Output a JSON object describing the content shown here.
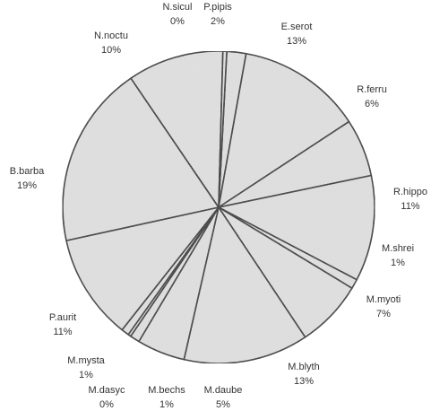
{
  "chart_data": {
    "type": "pie",
    "title": "",
    "slices": [
      {
        "name": "P.pipis",
        "pct_label": "2%",
        "value": 2
      },
      {
        "name": "E.serot",
        "pct_label": "13%",
        "value": 13
      },
      {
        "name": "R.ferru",
        "pct_label": "6%",
        "value": 6
      },
      {
        "name": "R.hippo",
        "pct_label": "11%",
        "value": 11
      },
      {
        "name": "M.shrei",
        "pct_label": "1%",
        "value": 1
      },
      {
        "name": "M.myoti",
        "pct_label": "7%",
        "value": 7
      },
      {
        "name": "M.blyth",
        "pct_label": "13%",
        "value": 13
      },
      {
        "name": "M.daube",
        "pct_label": "5%",
        "value": 5
      },
      {
        "name": "M.bechs",
        "pct_label": "1%",
        "value": 1
      },
      {
        "name": "M.dasyc",
        "pct_label": "0%",
        "value": 0.3
      },
      {
        "name": "M.mysta",
        "pct_label": "1%",
        "value": 0.8
      },
      {
        "name": "P.aurit",
        "pct_label": "11%",
        "value": 11
      },
      {
        "name": "B.barba",
        "pct_label": "19%",
        "value": 19
      },
      {
        "name": "N.noctu",
        "pct_label": "10%",
        "value": 10
      },
      {
        "name": "N.sicul",
        "pct_label": "0%",
        "value": 0.4
      }
    ],
    "legend": "none",
    "colors": {
      "fill": "#e2e2e2",
      "edge": "#2b2b2b",
      "label": "#333333"
    }
  }
}
